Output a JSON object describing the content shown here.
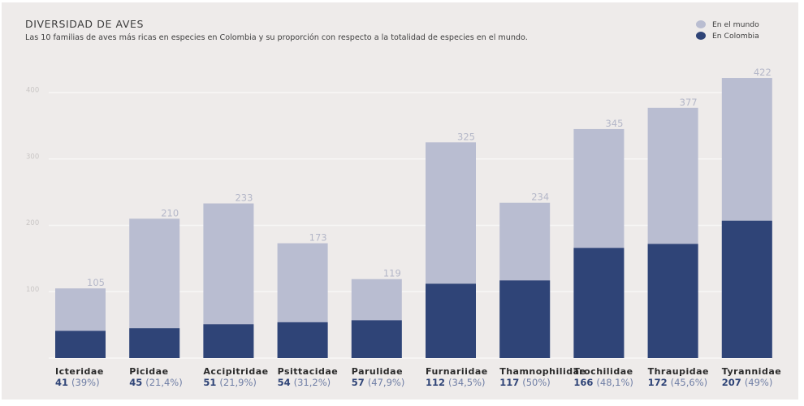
{
  "header": {
    "title": "DIVERSIDAD DE AVES",
    "subtitle": "Las 10 familias de aves más ricas en especies en Colombia y su proporción con respecto a la totalidad de especies en el mundo."
  },
  "legend": [
    {
      "label": "En el mundo",
      "color": "#b9bdd1"
    },
    {
      "label": "En Colombia",
      "color": "#2f4477"
    }
  ],
  "chart_data": {
    "type": "bar",
    "stacked": "overlay",
    "title": "DIVERSIDAD DE AVES",
    "subtitle": "Las 10 familias de aves más ricas en especies en Colombia y su proporción con respecto a la totalidad de especies en el mundo.",
    "xlabel": "",
    "ylabel": "",
    "ylim": [
      0,
      440
    ],
    "yticks": [
      100,
      200,
      300,
      400
    ],
    "grid": true,
    "legend_position": "top-right",
    "categories": [
      "Icteridae",
      "Picidae",
      "Accipitridae",
      "Psittacidae",
      "Parulidae",
      "Furnariidae",
      "Thamnophilidae",
      "Trochilidae",
      "Thraupidae",
      "Tyrannidae"
    ],
    "series": [
      {
        "name": "En el mundo",
        "color": "#b9bdd1",
        "values": [
          105,
          210,
          233,
          173,
          119,
          325,
          234,
          345,
          377,
          422
        ]
      },
      {
        "name": "En Colombia",
        "color": "#2f4477",
        "values": [
          41,
          45,
          51,
          54,
          57,
          112,
          117,
          166,
          172,
          207
        ]
      }
    ],
    "percent_labels": [
      "(39%)",
      "(21,4%)",
      "(21,9%)",
      "(31,2%)",
      "(47,9%)",
      "(34,5%)",
      "(50%)",
      "(48,1%)",
      "(45,6%)",
      "(49%)"
    ]
  }
}
